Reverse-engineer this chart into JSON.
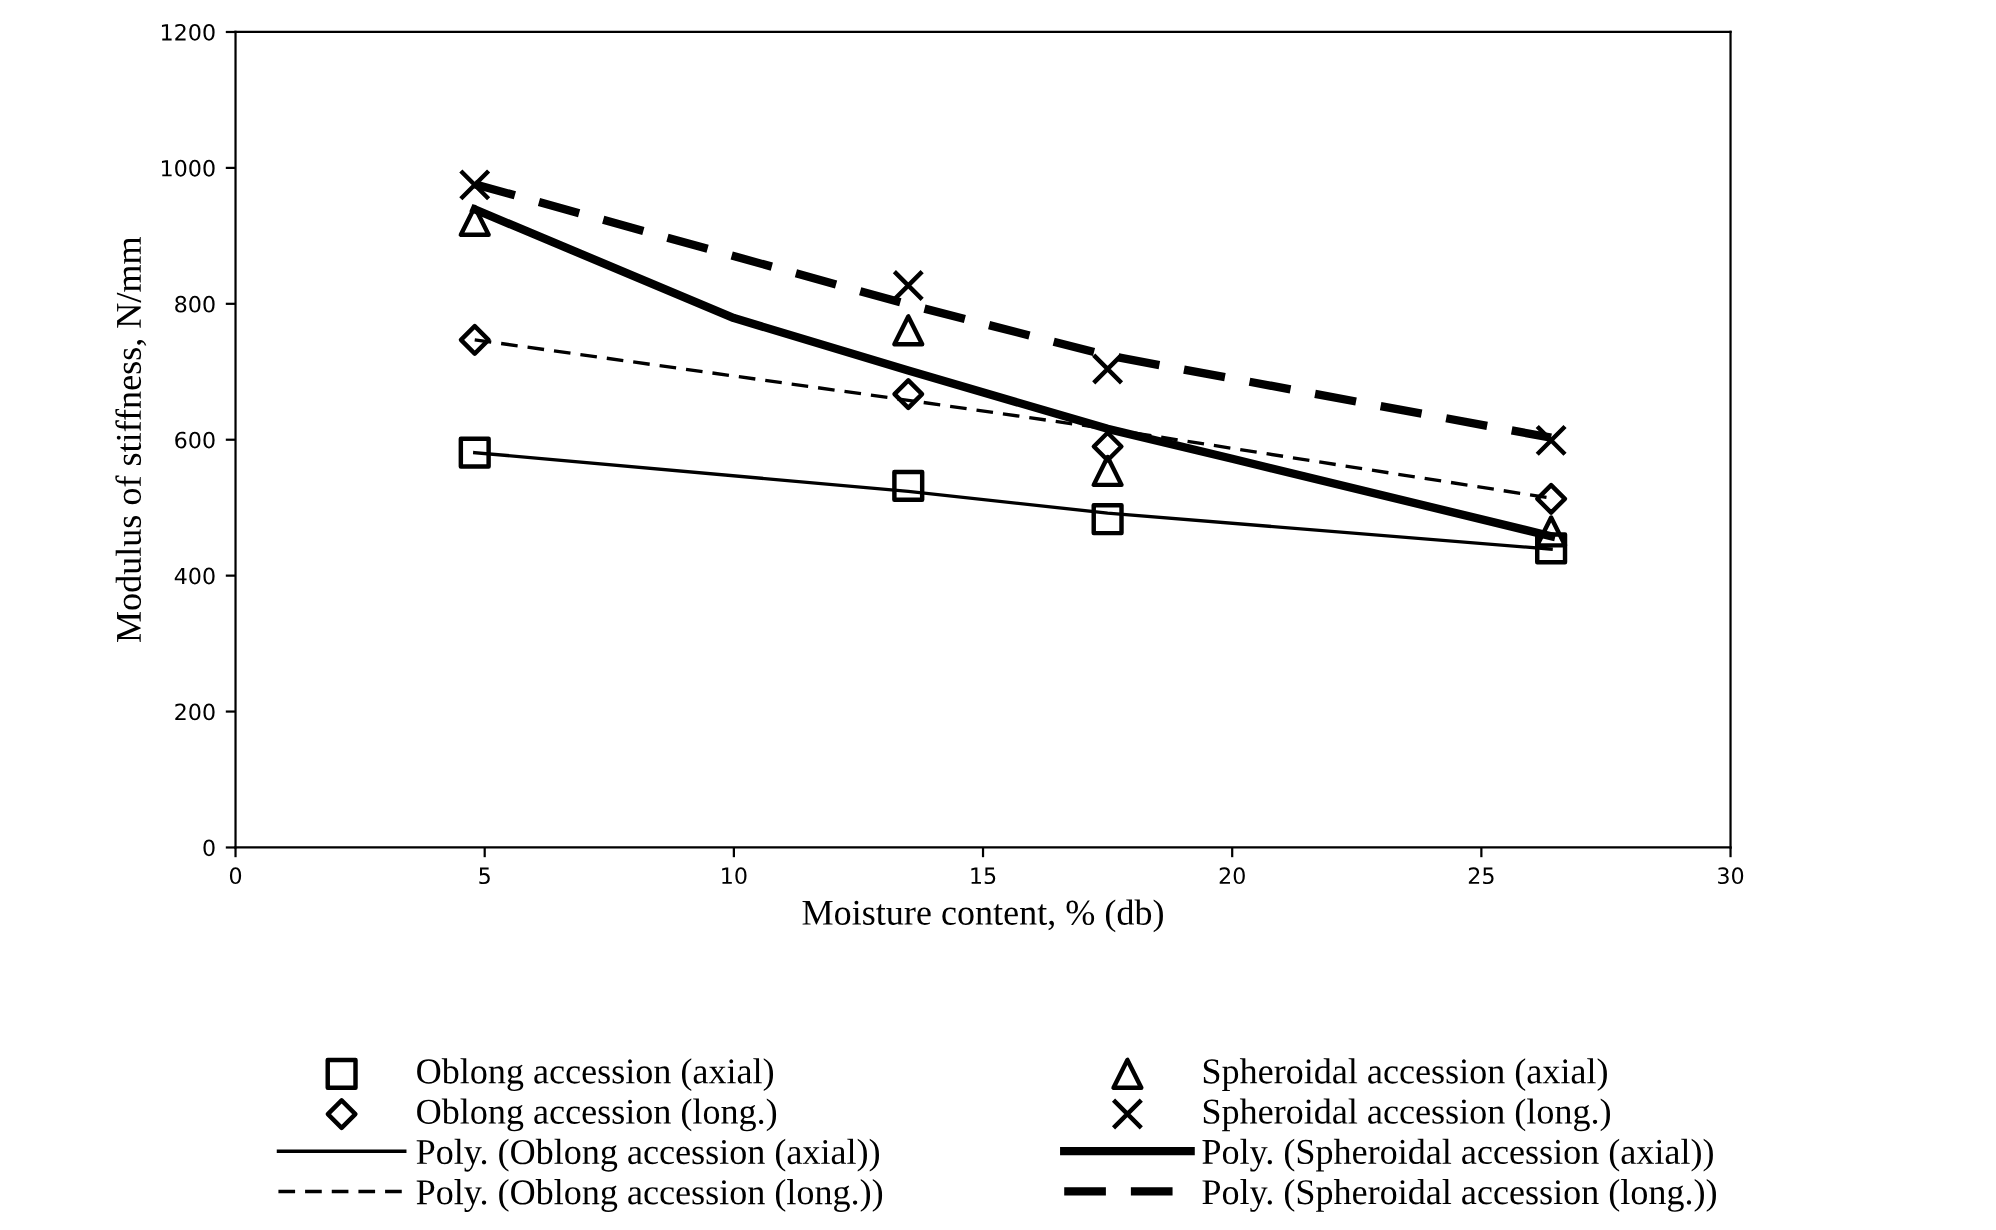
{
  "chart_data": {
    "type": "scatter",
    "xlabel": "Moisture content, % (db)",
    "ylabel": "Modulus of stiffness, N/mm",
    "xlim": [
      0,
      30
    ],
    "xticks": [
      0,
      5,
      10,
      15,
      20,
      25,
      30
    ],
    "ylim": [
      0,
      1200
    ],
    "yticks": [
      0,
      200,
      400,
      600,
      800,
      1000,
      1200
    ],
    "grid": false,
    "legend": "bottom",
    "series": [
      {
        "name": "Oblong accession (axial)",
        "marker": "square",
        "color": "#000000",
        "x": [
          4.8,
          13.5,
          17.5,
          26.4
        ],
        "values": [
          581,
          532,
          483,
          440
        ]
      },
      {
        "name": "Oblong accession (long.)",
        "marker": "diamond",
        "color": "#000000",
        "x": [
          4.8,
          13.5,
          17.5,
          26.4
        ],
        "values": [
          747,
          667,
          590,
          513
        ]
      },
      {
        "name": "Poly. (Oblong accession (axial))",
        "type": "line",
        "line_style": "solid",
        "color": "#000000",
        "x": [
          4.8,
          13.5,
          17.5,
          26.4
        ],
        "values": [
          581,
          524,
          492,
          439
        ]
      },
      {
        "name": "Poly. (Oblong accession (long.))",
        "type": "line",
        "line_style": "dashed",
        "color": "#000000",
        "x": [
          4.8,
          13.5,
          17.5,
          26.4
        ],
        "values": [
          747,
          658,
          616,
          514
        ]
      },
      {
        "name": "Spheroidal accession (axial)",
        "marker": "triangle",
        "color": "#000000",
        "x": [
          4.8,
          13.5,
          17.5,
          26.4
        ],
        "values": [
          922,
          761,
          554,
          465
        ]
      },
      {
        "name": "Spheroidal accession (long.)",
        "marker": "cross",
        "color": "#000000",
        "x": [
          4.8,
          13.5,
          17.5,
          26.4
        ],
        "values": [
          975,
          827,
          704,
          599
        ]
      },
      {
        "name": "Poly. (Spheroidal accession (axial))",
        "type": "line",
        "line_style": "solid",
        "color": "#000000",
        "x": [
          4.8,
          10,
          13.5,
          17.5,
          20,
          26.4
        ],
        "values": [
          939,
          779,
          702,
          616,
          572,
          458
        ]
      },
      {
        "name": "Poly. (Spheroidal accession (long.))",
        "type": "line",
        "line_style": "dashed",
        "color": "#000000",
        "x": [
          4.8,
          13.5,
          17.5,
          26.4
        ],
        "values": [
          976,
          799,
          724,
          603
        ]
      }
    ]
  }
}
